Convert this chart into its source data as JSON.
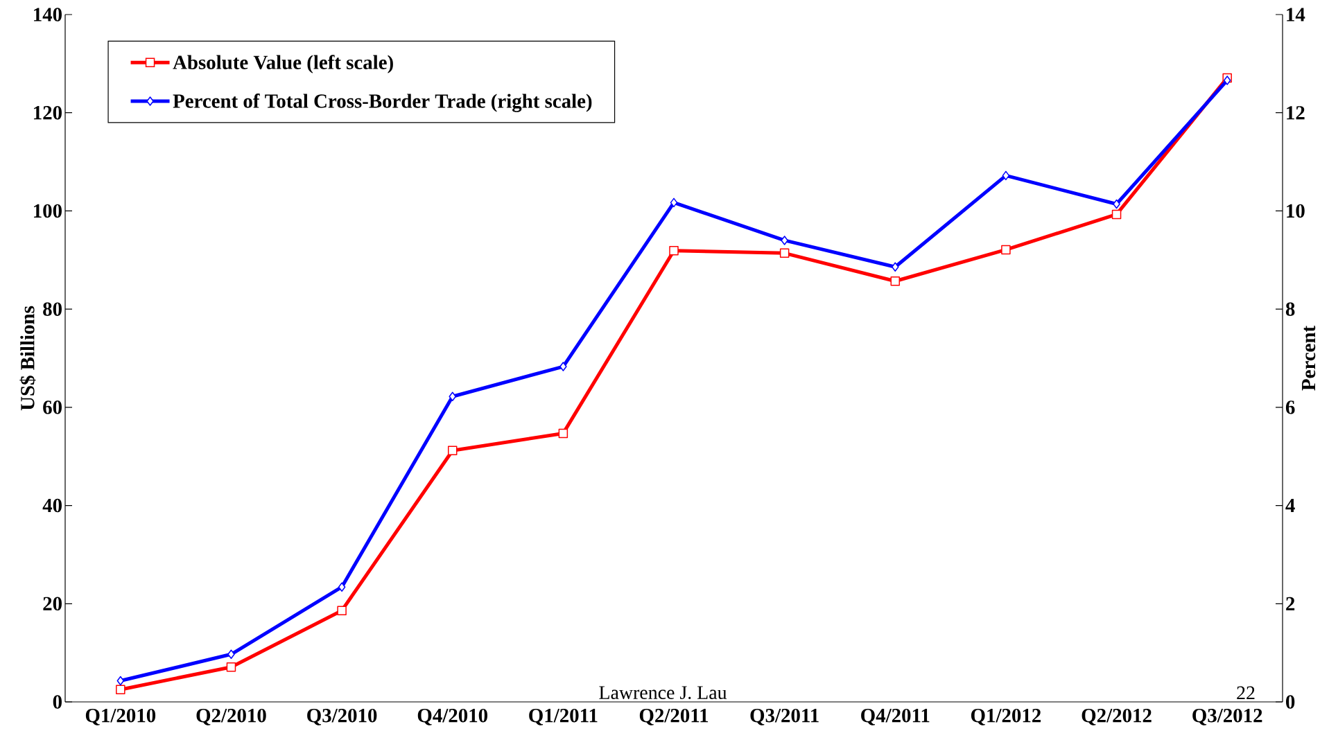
{
  "chart_data": {
    "type": "line",
    "categories": [
      "Q1/2010",
      "Q2/2010",
      "Q3/2010",
      "Q4/2010",
      "Q1/2011",
      "Q2/2011",
      "Q3/2011",
      "Q4/2011",
      "Q1/2012",
      "Q2/2012",
      "Q3/2012"
    ],
    "series": [
      {
        "name": "Absolute Value (left scale)",
        "color": "#ff0000",
        "marker": "square",
        "values": [
          2.5,
          7.1,
          18.6,
          51.2,
          54.7,
          91.9,
          91.4,
          85.7,
          92.1,
          99.3,
          127.1
        ]
      },
      {
        "name": "Percent of Total Cross-Border Trade (right scale)",
        "color": "#0000ff",
        "marker": "diamond",
        "axis": "y2",
        "values": [
          0.43,
          0.97,
          2.34,
          6.22,
          6.83,
          10.17,
          9.4,
          8.86,
          10.72,
          10.14,
          12.66
        ]
      }
    ],
    "ylabel": "US$ Billions",
    "y2label": "Percent",
    "ylim": [
      0,
      140
    ],
    "yticks": [
      0,
      20,
      40,
      60,
      80,
      100,
      120,
      140
    ],
    "y2lim": [
      0,
      14
    ],
    "y2ticks": [
      0,
      2,
      4,
      6,
      8,
      10,
      12,
      14
    ],
    "legend": "top left",
    "grid": false,
    "annotations": [
      "Lawrence J. Lau",
      "22"
    ]
  }
}
